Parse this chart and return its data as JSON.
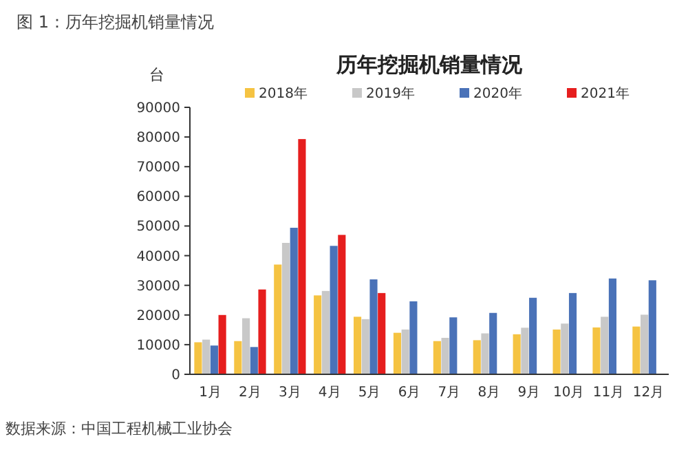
{
  "chart_data": {
    "type": "bar",
    "title": "历年挖掘机销量情况",
    "ylabel": "台",
    "annotations": [
      "图 1：历年挖掘机销量情况",
      "数据来源：中国工程机械工业协会"
    ],
    "categories": [
      "1月",
      "2月",
      "3月",
      "4月",
      "5月",
      "6月",
      "7月",
      "8月",
      "9月",
      "10月",
      "11月",
      "12月"
    ],
    "series": [
      {
        "name": "2018年",
        "color": "#f5c342",
        "values": [
          10800,
          11200,
          37000,
          26600,
          19400,
          14000,
          11200,
          11500,
          13500,
          15100,
          15800,
          16100
        ]
      },
      {
        "name": "2019年",
        "color": "#c8c8c8",
        "values": [
          11700,
          18900,
          44300,
          28100,
          18600,
          15100,
          12300,
          13800,
          15700,
          17100,
          19400,
          20100
        ]
      },
      {
        "name": "2020年",
        "color": "#4a72b8",
        "values": [
          9700,
          9200,
          49400,
          43300,
          32000,
          24600,
          19200,
          20700,
          25800,
          27400,
          32300,
          31700
        ]
      },
      {
        "name": "2021年",
        "color": "#e61e1e",
        "values": [
          20000,
          28600,
          79300,
          47000,
          27400,
          null,
          null,
          null,
          null,
          null,
          null,
          null
        ]
      }
    ],
    "ylim": [
      0,
      90000
    ],
    "yticks": [
      0,
      10000,
      20000,
      30000,
      40000,
      50000,
      60000,
      70000,
      80000,
      90000
    ],
    "legend": "top",
    "grid": false
  }
}
